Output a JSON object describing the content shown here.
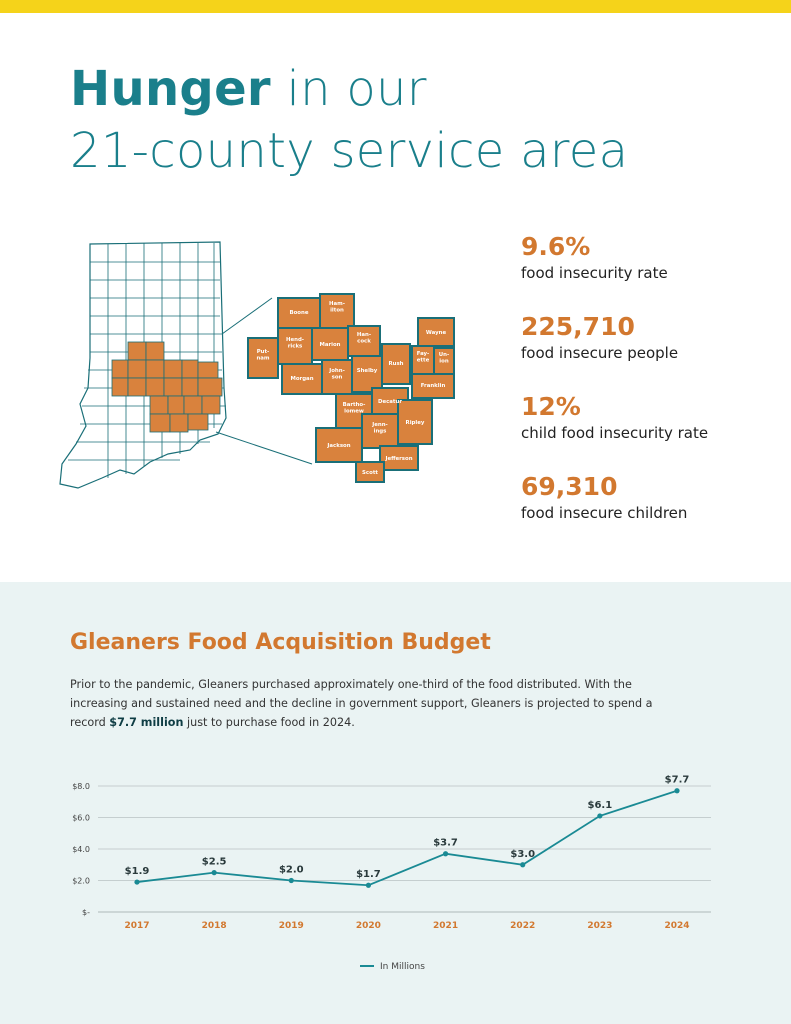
{
  "header": {
    "title_bold": "Hunger",
    "title_rest1": " in our",
    "title_line2": "21-county service area"
  },
  "stats": [
    {
      "value": "9.6%",
      "label": "food insecurity rate"
    },
    {
      "value": "225,710",
      "label": "food insecure people"
    },
    {
      "value": "12%",
      "label": "child food insecurity rate"
    },
    {
      "value": "69,310",
      "label": "food insecure children"
    }
  ],
  "map": {
    "counties": [
      "Boone",
      "Ham-\nilton",
      "Hend-\nricks",
      "Marion",
      "Han-\ncock",
      "Put-\nnam",
      "Morgan",
      "John-\nson",
      "Shelby",
      "Rush",
      "Fay-\nette",
      "Un-\nion",
      "Wayne",
      "Franklin",
      "Bartho-\nlomew",
      "Decatur",
      "Ripley",
      "Jackson",
      "Jenn-\nings",
      "Jefferson",
      "Scott"
    ],
    "highlight_color": "#d9823d",
    "outline_color": "#1a6f78"
  },
  "section": {
    "title": "Gleaners Food Acquisition Budget",
    "para_part1": "Prior to the pandemic, Gleaners purchased approximately one-third of the food distributed. With the increasing and sustained need and the decline in government support, Gleaners is projected to spend a record ",
    "para_bold": "$7.7 million",
    "para_part2": " just to purchase food in 2024."
  },
  "chart_data": {
    "type": "line",
    "categories": [
      "2017",
      "2018",
      "2019",
      "2020",
      "2021",
      "2022",
      "2023",
      "2024"
    ],
    "series": [
      {
        "name": "In Millions",
        "values": [
          1.9,
          2.5,
          2.0,
          1.7,
          3.7,
          3.0,
          6.1,
          7.7
        ],
        "labels": [
          "$1.9",
          "$2.5",
          "$2.0",
          "$1.7",
          "$3.7",
          "$3.0",
          "$6.1",
          "$7.7"
        ]
      }
    ],
    "yticks": [
      "$-",
      "$2.0",
      "$4.0",
      "$6.0",
      "$8.0"
    ],
    "ylim": [
      0,
      8
    ],
    "grid": true,
    "legend": "bottom-center",
    "line_color": "#1a8a94",
    "category_color": "#d2782f"
  }
}
